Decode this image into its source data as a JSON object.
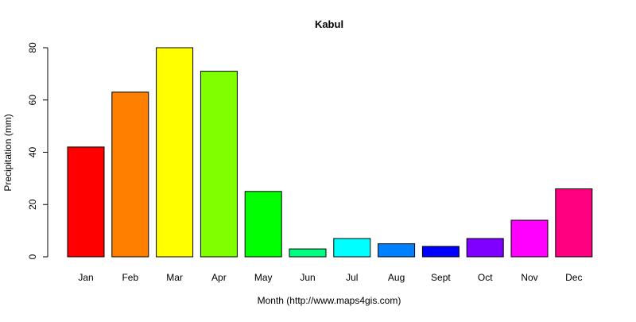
{
  "chart_data": {
    "type": "bar",
    "title": "Kabul",
    "xlabel": "Month (http://www.maps4gis.com)",
    "ylabel": "Precipitation (mm)",
    "categories": [
      "Jan",
      "Feb",
      "Mar",
      "Apr",
      "May",
      "Jun",
      "Jul",
      "Aug",
      "Sept",
      "Oct",
      "Nov",
      "Dec"
    ],
    "values": [
      42,
      63,
      80,
      71,
      25,
      3,
      7,
      5,
      4,
      7,
      14,
      26
    ],
    "colors": [
      "#FF0000",
      "#FF8000",
      "#FFFF00",
      "#80FF00",
      "#00FF00",
      "#00FF80",
      "#00FFFF",
      "#0080FF",
      "#0000FF",
      "#8000FF",
      "#FF00FF",
      "#FF0080"
    ],
    "bar_outline_color": "#000000",
    "ylim": [
      0,
      80
    ],
    "yticks": [
      0,
      20,
      40,
      60,
      80
    ],
    "grid": false,
    "legend": "none"
  }
}
